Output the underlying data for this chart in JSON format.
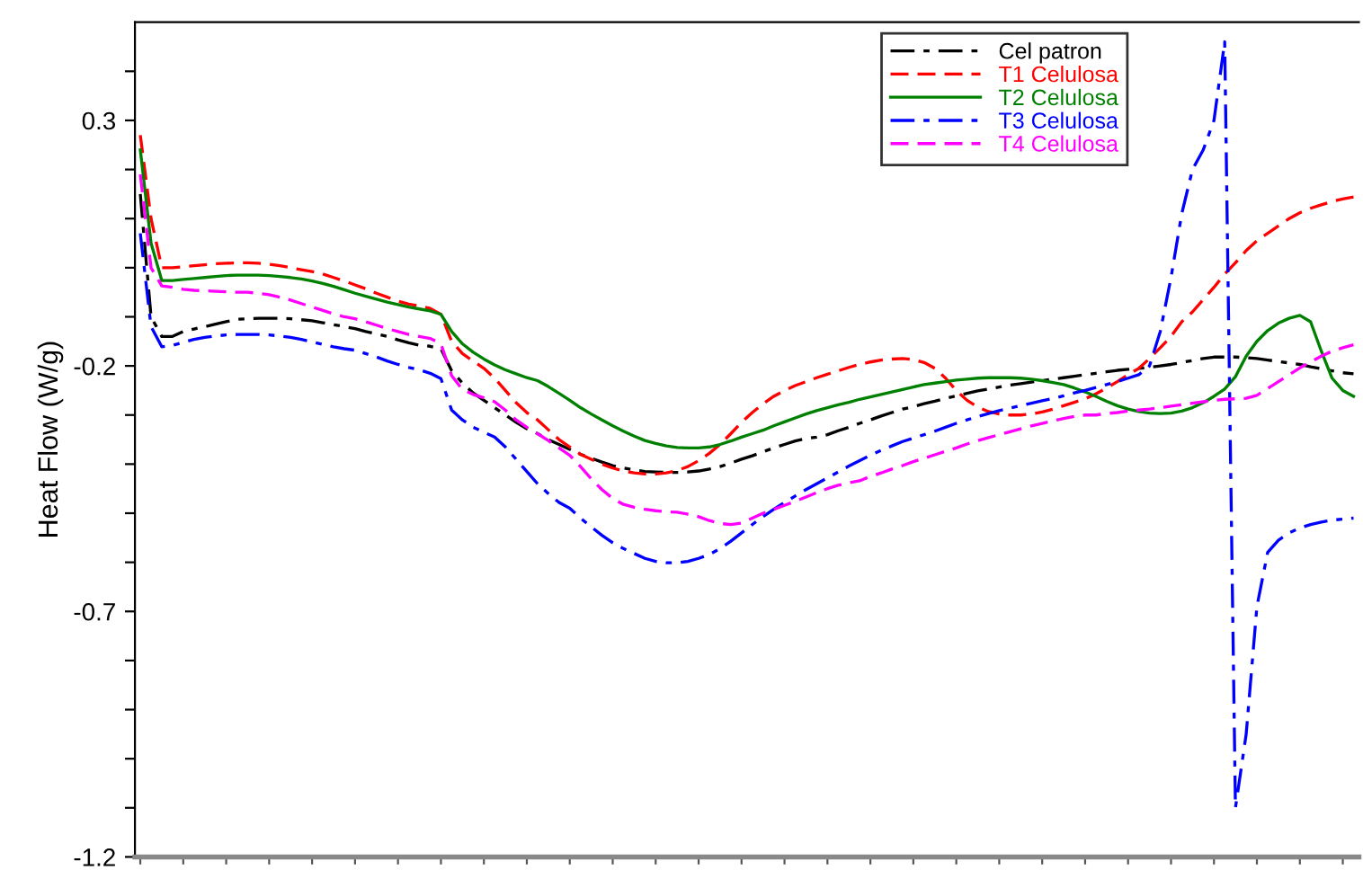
{
  "chart_data": {
    "type": "line",
    "ylabel": "Heat Flow (W/g)",
    "categories": [
      null,
      null,
      null,
      null,
      null,
      null,
      null,
      null,
      null,
      null,
      null,
      null,
      null,
      null,
      null,
      null,
      null,
      null,
      null,
      null,
      null,
      null,
      null,
      null,
      null,
      null,
      null,
      null,
      null,
      null,
      null,
      null,
      null,
      null,
      null,
      null,
      null,
      null,
      null,
      null,
      null,
      null,
      null,
      null,
      null,
      null,
      null,
      null,
      null,
      null,
      null,
      null,
      null,
      null,
      null,
      null,
      null,
      null,
      null,
      null,
      null,
      null,
      null,
      null,
      null,
      null,
      null,
      null,
      null,
      null,
      null,
      null,
      null,
      null,
      null,
      null,
      null,
      null,
      null,
      null,
      null,
      null,
      null,
      null,
      null,
      null,
      null,
      null,
      null,
      null,
      null,
      null,
      null,
      null,
      null,
      null,
      null,
      null,
      null,
      null,
      null,
      null,
      null,
      null,
      null,
      null,
      null,
      null,
      null,
      null,
      null,
      null,
      null,
      null
    ],
    "series": [
      {
        "name": "Cel patron",
        "color": "#000000",
        "line_style": "dashdot",
        "values": [
          0.15,
          -0.1,
          -0.14,
          -0.14,
          -0.13,
          -0.125,
          -0.12,
          -0.115,
          -0.11,
          -0.105,
          -0.104,
          -0.103,
          -0.103,
          -0.103,
          -0.104,
          -0.106,
          -0.108,
          -0.112,
          -0.116,
          -0.12,
          -0.124,
          -0.13,
          -0.135,
          -0.14,
          -0.147,
          -0.153,
          -0.158,
          -0.16,
          -0.165,
          -0.21,
          -0.235,
          -0.255,
          -0.27,
          -0.285,
          -0.3,
          -0.315,
          -0.328,
          -0.338,
          -0.35,
          -0.36,
          -0.37,
          -0.38,
          -0.388,
          -0.396,
          -0.403,
          -0.408,
          -0.412,
          -0.415,
          -0.416,
          -0.417,
          -0.417,
          -0.416,
          -0.414,
          -0.41,
          -0.405,
          -0.398,
          -0.39,
          -0.383,
          -0.375,
          -0.367,
          -0.36,
          -0.353,
          -0.348,
          -0.345,
          -0.34,
          -0.332,
          -0.325,
          -0.317,
          -0.31,
          -0.302,
          -0.295,
          -0.288,
          -0.283,
          -0.277,
          -0.272,
          -0.266,
          -0.261,
          -0.256,
          -0.251,
          -0.247,
          -0.243,
          -0.239,
          -0.236,
          -0.233,
          -0.23,
          -0.227,
          -0.224,
          -0.221,
          -0.218,
          -0.215,
          -0.212,
          -0.209,
          -0.207,
          -0.205,
          -0.203,
          -0.2,
          -0.197,
          -0.193,
          -0.189,
          -0.185,
          -0.182,
          -0.182,
          -0.182,
          -0.183,
          -0.185,
          -0.188,
          -0.191,
          -0.194,
          -0.197,
          -0.202,
          -0.206,
          -0.21,
          -0.214,
          -0.216
        ]
      },
      {
        "name": "T1 Celulosa",
        "color": "#ff0000",
        "line_style": "dashed",
        "values": [
          0.27,
          0.1,
          0.0,
          0.0,
          0.002,
          0.004,
          0.006,
          0.008,
          0.009,
          0.01,
          0.01,
          0.009,
          0.007,
          0.004,
          0.0,
          -0.004,
          -0.008,
          -0.013,
          -0.02,
          -0.027,
          -0.035,
          -0.043,
          -0.052,
          -0.06,
          -0.068,
          -0.074,
          -0.078,
          -0.083,
          -0.095,
          -0.15,
          -0.175,
          -0.19,
          -0.205,
          -0.225,
          -0.25,
          -0.275,
          -0.295,
          -0.31,
          -0.33,
          -0.35,
          -0.365,
          -0.38,
          -0.39,
          -0.4,
          -0.408,
          -0.414,
          -0.418,
          -0.42,
          -0.42,
          -0.418,
          -0.413,
          -0.405,
          -0.393,
          -0.378,
          -0.36,
          -0.338,
          -0.315,
          -0.295,
          -0.277,
          -0.262,
          -0.25,
          -0.24,
          -0.232,
          -0.224,
          -0.217,
          -0.21,
          -0.203,
          -0.197,
          -0.192,
          -0.188,
          -0.186,
          -0.185,
          -0.187,
          -0.193,
          -0.205,
          -0.225,
          -0.25,
          -0.27,
          -0.284,
          -0.293,
          -0.298,
          -0.3,
          -0.3,
          -0.298,
          -0.294,
          -0.288,
          -0.281,
          -0.274,
          -0.267,
          -0.257,
          -0.245,
          -0.232,
          -0.218,
          -0.205,
          -0.185,
          -0.163,
          -0.14,
          -0.11,
          -0.09,
          -0.065,
          -0.04,
          -0.013,
          0.01,
          0.035,
          0.055,
          0.07,
          0.085,
          0.1,
          0.112,
          0.121,
          0.128,
          0.135,
          0.14,
          0.144
        ]
      },
      {
        "name": "T2 Celulosa",
        "color": "#008000",
        "line_style": "solid",
        "values": [
          0.24,
          0.05,
          -0.026,
          -0.026,
          -0.024,
          -0.022,
          -0.02,
          -0.018,
          -0.016,
          -0.015,
          -0.015,
          -0.015,
          -0.016,
          -0.018,
          -0.02,
          -0.023,
          -0.027,
          -0.032,
          -0.038,
          -0.045,
          -0.052,
          -0.058,
          -0.064,
          -0.07,
          -0.075,
          -0.08,
          -0.084,
          -0.088,
          -0.095,
          -0.13,
          -0.155,
          -0.172,
          -0.186,
          -0.198,
          -0.208,
          -0.216,
          -0.224,
          -0.23,
          -0.242,
          -0.256,
          -0.27,
          -0.285,
          -0.298,
          -0.31,
          -0.322,
          -0.333,
          -0.343,
          -0.352,
          -0.358,
          -0.363,
          -0.366,
          -0.367,
          -0.367,
          -0.365,
          -0.36,
          -0.353,
          -0.345,
          -0.338,
          -0.331,
          -0.322,
          -0.314,
          -0.306,
          -0.298,
          -0.291,
          -0.285,
          -0.279,
          -0.274,
          -0.268,
          -0.263,
          -0.258,
          -0.253,
          -0.248,
          -0.243,
          -0.238,
          -0.235,
          -0.232,
          -0.229,
          -0.227,
          -0.225,
          -0.224,
          -0.224,
          -0.224,
          -0.225,
          -0.227,
          -0.23,
          -0.234,
          -0.238,
          -0.245,
          -0.253,
          -0.262,
          -0.272,
          -0.281,
          -0.288,
          -0.293,
          -0.296,
          -0.297,
          -0.296,
          -0.292,
          -0.285,
          -0.275,
          -0.262,
          -0.247,
          -0.222,
          -0.18,
          -0.15,
          -0.128,
          -0.113,
          -0.103,
          -0.097,
          -0.11,
          -0.17,
          -0.225,
          -0.25,
          -0.262
        ]
      },
      {
        "name": "T3 Celulosa",
        "color": "#0000ff",
        "line_style": "dashdot",
        "values": [
          0.07,
          -0.12,
          -0.161,
          -0.158,
          -0.152,
          -0.146,
          -0.142,
          -0.139,
          -0.137,
          -0.136,
          -0.136,
          -0.136,
          -0.137,
          -0.139,
          -0.142,
          -0.146,
          -0.151,
          -0.156,
          -0.161,
          -0.165,
          -0.168,
          -0.175,
          -0.182,
          -0.19,
          -0.197,
          -0.203,
          -0.208,
          -0.215,
          -0.226,
          -0.29,
          -0.31,
          -0.325,
          -0.335,
          -0.345,
          -0.365,
          -0.39,
          -0.415,
          -0.44,
          -0.46,
          -0.478,
          -0.49,
          -0.51,
          -0.528,
          -0.545,
          -0.56,
          -0.572,
          -0.582,
          -0.592,
          -0.598,
          -0.601,
          -0.601,
          -0.598,
          -0.592,
          -0.584,
          -0.572,
          -0.557,
          -0.54,
          -0.523,
          -0.507,
          -0.492,
          -0.478,
          -0.465,
          -0.452,
          -0.44,
          -0.428,
          -0.416,
          -0.404,
          -0.393,
          -0.382,
          -0.372,
          -0.363,
          -0.354,
          -0.347,
          -0.34,
          -0.333,
          -0.325,
          -0.317,
          -0.31,
          -0.303,
          -0.297,
          -0.291,
          -0.286,
          -0.281,
          -0.276,
          -0.271,
          -0.266,
          -0.261,
          -0.255,
          -0.25,
          -0.244,
          -0.238,
          -0.232,
          -0.225,
          -0.218,
          -0.2,
          -0.13,
          -0.02,
          0.11,
          0.2,
          0.24,
          0.3,
          0.46,
          -1.1,
          -0.95,
          -0.69,
          -0.58,
          -0.555,
          -0.54,
          -0.53,
          -0.523,
          -0.518,
          -0.514,
          -0.512,
          -0.51
        ]
      },
      {
        "name": "T4 Celulosa",
        "color": "#ff00ff",
        "line_style": "dashed",
        "values": [
          0.19,
          0.0,
          -0.037,
          -0.04,
          -0.044,
          -0.046,
          -0.047,
          -0.048,
          -0.049,
          -0.05,
          -0.05,
          -0.052,
          -0.055,
          -0.06,
          -0.066,
          -0.073,
          -0.08,
          -0.087,
          -0.094,
          -0.1,
          -0.104,
          -0.11,
          -0.117,
          -0.124,
          -0.13,
          -0.136,
          -0.14,
          -0.144,
          -0.155,
          -0.22,
          -0.248,
          -0.258,
          -0.265,
          -0.273,
          -0.29,
          -0.31,
          -0.325,
          -0.338,
          -0.352,
          -0.367,
          -0.382,
          -0.405,
          -0.43,
          -0.452,
          -0.47,
          -0.482,
          -0.488,
          -0.492,
          -0.495,
          -0.497,
          -0.498,
          -0.502,
          -0.507,
          -0.515,
          -0.521,
          -0.523,
          -0.52,
          -0.51,
          -0.5,
          -0.492,
          -0.484,
          -0.476,
          -0.467,
          -0.458,
          -0.45,
          -0.443,
          -0.438,
          -0.434,
          -0.425,
          -0.418,
          -0.41,
          -0.403,
          -0.395,
          -0.388,
          -0.381,
          -0.374,
          -0.367,
          -0.359,
          -0.352,
          -0.346,
          -0.34,
          -0.334,
          -0.328,
          -0.322,
          -0.317,
          -0.312,
          -0.307,
          -0.303,
          -0.3,
          -0.3,
          -0.297,
          -0.295,
          -0.292,
          -0.29,
          -0.288,
          -0.285,
          -0.282,
          -0.279,
          -0.276,
          -0.273,
          -0.27,
          -0.268,
          -0.267,
          -0.266,
          -0.26,
          -0.246,
          -0.232,
          -0.218,
          -0.204,
          -0.192,
          -0.18,
          -0.17,
          -0.163,
          -0.157
        ]
      }
    ],
    "ylim": [
      -1.2,
      0.5
    ],
    "yticks": [
      -1.2,
      {
        "value": -1.1,
        "label": null
      },
      {
        "value": -1.0,
        "label": null
      },
      {
        "value": -0.9,
        "label": null
      },
      {
        "value": -0.8,
        "label": null
      },
      -0.7,
      {
        "value": -0.6,
        "label": null
      },
      {
        "value": -0.5,
        "label": null
      },
      {
        "value": -0.4,
        "label": null
      },
      {
        "value": -0.3,
        "label": null
      },
      -0.2,
      {
        "value": -0.1,
        "label": null
      },
      {
        "value": 0.0,
        "label": null
      },
      {
        "value": 0.1,
        "label": null
      },
      {
        "value": 0.2,
        "label": null
      },
      0.3,
      {
        "value": 0.4,
        "label": null
      }
    ],
    "tick_labels": "y",
    "grid": false,
    "legend": "top right"
  }
}
